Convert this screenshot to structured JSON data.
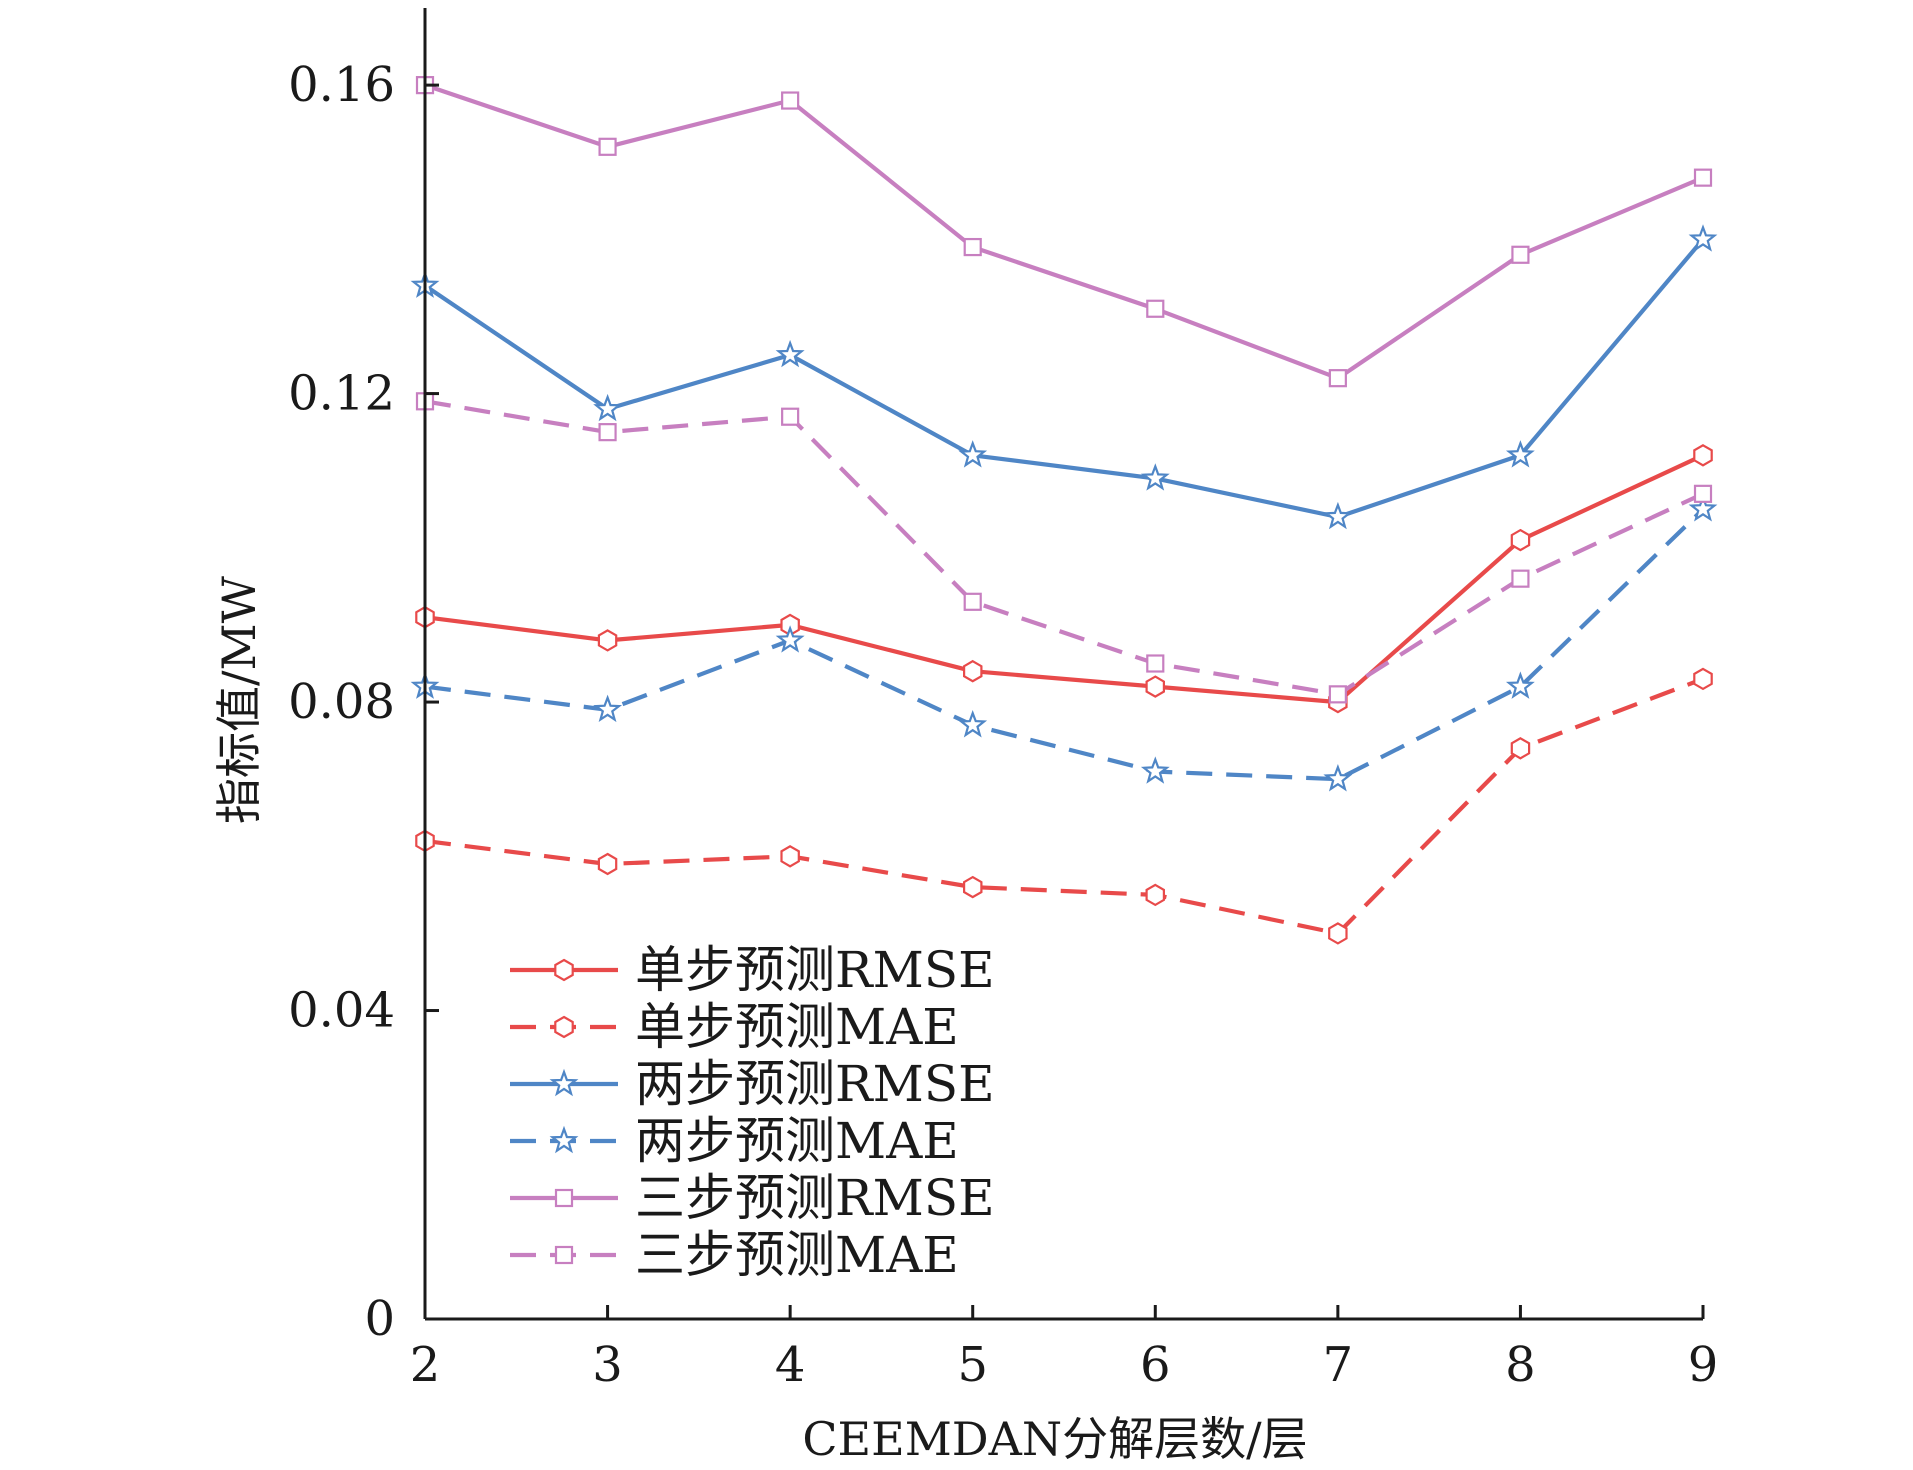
{
  "chart_data": {
    "type": "line",
    "xlabel": "CEEMDAN分解层数/层",
    "ylabel": "指标值/MW",
    "x": [
      2,
      3,
      4,
      5,
      6,
      7,
      8,
      9
    ],
    "xlim": [
      2,
      9
    ],
    "ylim": [
      0,
      0.17
    ],
    "x_tick_labels": [
      "2",
      "3",
      "4",
      "5",
      "6",
      "7",
      "8",
      "9"
    ],
    "y_ticks": [
      0,
      0.04,
      0.08,
      0.12,
      0.16
    ],
    "y_tick_labels": [
      "0",
      "0.04",
      "0.08",
      "0.12",
      "0.16"
    ],
    "grid": false,
    "legend_position": "bottom-left",
    "series": [
      {
        "name": "单步预测RMSE",
        "color": "#e84a4a",
        "dash": "solid",
        "marker": "hexagon",
        "values": [
          0.091,
          0.088,
          0.09,
          0.084,
          0.082,
          0.08,
          0.101,
          0.112
        ]
      },
      {
        "name": "单步预测MAE",
        "color": "#e84a4a",
        "dash": "dashed",
        "marker": "hexagon",
        "values": [
          0.062,
          0.059,
          0.06,
          0.056,
          0.055,
          0.05,
          0.074,
          0.083
        ]
      },
      {
        "name": "两步预测RMSE",
        "color": "#4f86c6",
        "dash": "solid",
        "marker": "star",
        "values": [
          0.134,
          0.118,
          0.125,
          0.112,
          0.109,
          0.104,
          0.112,
          0.14
        ]
      },
      {
        "name": "两步预测MAE",
        "color": "#4f86c6",
        "dash": "dashed",
        "marker": "star",
        "values": [
          0.082,
          0.079,
          0.088,
          0.077,
          0.071,
          0.07,
          0.082,
          0.105
        ]
      },
      {
        "name": "三步预测RMSE",
        "color": "#c77fc0",
        "dash": "solid",
        "marker": "square",
        "values": [
          0.16,
          0.152,
          0.158,
          0.139,
          0.131,
          0.122,
          0.138,
          0.148
        ]
      },
      {
        "name": "三步预测MAE",
        "color": "#c77fc0",
        "dash": "dashed",
        "marker": "square",
        "values": [
          0.119,
          0.115,
          0.117,
          0.093,
          0.085,
          0.081,
          0.096,
          0.107
        ]
      }
    ]
  }
}
